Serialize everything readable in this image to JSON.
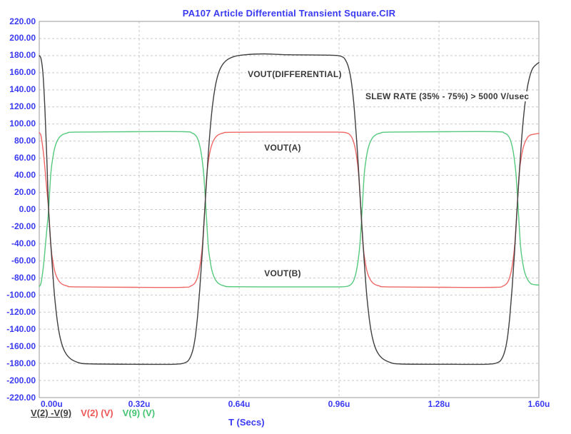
{
  "title": "PA107 Article Differential Transient Square.CIR",
  "colors": {
    "text_blue": "#3a3af2",
    "trace_black": "#3f3f3f",
    "trace_red": "#ef6666",
    "trace_green": "#55c97e",
    "grid": "#c9c9c9",
    "border": "#9a9a9a",
    "annotation": "#383838",
    "background": "#ffffff"
  },
  "chart_data": {
    "type": "line",
    "title": "PA107 Article Differential Transient Square.CIR",
    "xlabel": "T (Secs)",
    "ylabel": "",
    "xlim": [
      0,
      1.6
    ],
    "ylim": [
      -220,
      220
    ],
    "x_unit": "u",
    "grid": "dashed",
    "x_ticks": [
      "0.00u",
      "0.32u",
      "0.64u",
      "0.96u",
      "1.28u",
      "1.60u"
    ],
    "y_ticks": [
      "220.00",
      "200.00",
      "180.00",
      "160.00",
      "140.00",
      "120.00",
      "100.00",
      "80.00",
      "60.00",
      "40.00",
      "20.00",
      "0.00",
      "-20.00",
      "-40.00",
      "-60.00",
      "-80.00",
      "-100.00",
      "-120.00",
      "-140.00",
      "-160.00",
      "-180.00",
      "-200.00",
      "-220.00"
    ],
    "legend": [
      {
        "label": "V(2) -V(9)",
        "color": "#3f3f3f",
        "underline": true
      },
      {
        "label": "V(2) (V)",
        "color": "#ee5555",
        "underline": false
      },
      {
        "label": "V(9) (V)",
        "color": "#44c474",
        "underline": false
      }
    ],
    "annotations": [
      {
        "text": "VOUT(DIFFERENTIAL)",
        "x": 0.663,
        "y": 158
      },
      {
        "text": "VOUT(A)",
        "x": 0.716,
        "y": 72
      },
      {
        "text": "VOUT(B)",
        "x": 0.716,
        "y": -75
      },
      {
        "text": "SLEW RATE (35% - 75%) > 5000 V/usec",
        "x": 1.04,
        "y": 132
      }
    ],
    "series": [
      {
        "name": "V(9) (V)",
        "label": "VOUT(B)",
        "color": "#55c97e",
        "width": 1.4,
        "points": [
          [
            0.0,
            -90
          ],
          [
            0.005,
            -87
          ],
          [
            0.01,
            -76
          ],
          [
            0.016,
            -57
          ],
          [
            0.023,
            -28
          ],
          [
            0.03,
            0
          ],
          [
            0.037,
            42
          ],
          [
            0.044,
            62
          ],
          [
            0.051,
            74
          ],
          [
            0.06,
            82
          ],
          [
            0.072,
            87
          ],
          [
            0.09,
            89.5
          ],
          [
            0.115,
            90.5
          ],
          [
            0.3,
            91
          ],
          [
            0.464,
            91
          ],
          [
            0.489,
            89.5
          ],
          [
            0.5,
            87
          ],
          [
            0.508,
            82
          ],
          [
            0.515,
            73
          ],
          [
            0.521,
            60
          ],
          [
            0.527,
            40
          ],
          [
            0.534,
            0
          ],
          [
            0.541,
            -42
          ],
          [
            0.548,
            -62
          ],
          [
            0.555,
            -74
          ],
          [
            0.564,
            -82
          ],
          [
            0.576,
            -87
          ],
          [
            0.594,
            -89.5
          ],
          [
            0.619,
            -90.3
          ],
          [
            0.8,
            -90.5
          ],
          [
            0.959,
            -90.5
          ],
          [
            0.989,
            -89.5
          ],
          [
            1.0,
            -87
          ],
          [
            1.008,
            -82
          ],
          [
            1.015,
            -73
          ],
          [
            1.021,
            -60
          ],
          [
            1.027,
            -40
          ],
          [
            1.034,
            0
          ],
          [
            1.041,
            42
          ],
          [
            1.048,
            62
          ],
          [
            1.055,
            74
          ],
          [
            1.064,
            82
          ],
          [
            1.076,
            87
          ],
          [
            1.094,
            89.5
          ],
          [
            1.119,
            90.5
          ],
          [
            1.3,
            91
          ],
          [
            1.464,
            91
          ],
          [
            1.489,
            89.5
          ],
          [
            1.5,
            87
          ],
          [
            1.508,
            82
          ],
          [
            1.515,
            73
          ],
          [
            1.521,
            60
          ],
          [
            1.527,
            40
          ],
          [
            1.534,
            0
          ],
          [
            1.541,
            -42
          ],
          [
            1.548,
            -62
          ],
          [
            1.555,
            -74
          ],
          [
            1.564,
            -82
          ],
          [
            1.576,
            -87
          ],
          [
            1.6,
            -88.5
          ]
        ]
      },
      {
        "name": "V(2) (V)",
        "label": "VOUT(A)",
        "color": "#ef6666",
        "width": 1.4,
        "points": [
          [
            0.0,
            90
          ],
          [
            0.005,
            87
          ],
          [
            0.01,
            76
          ],
          [
            0.016,
            57
          ],
          [
            0.023,
            28
          ],
          [
            0.03,
            0
          ],
          [
            0.037,
            -42
          ],
          [
            0.044,
            -62
          ],
          [
            0.051,
            -74
          ],
          [
            0.06,
            -82
          ],
          [
            0.072,
            -87
          ],
          [
            0.09,
            -89.5
          ],
          [
            0.115,
            -90.5
          ],
          [
            0.3,
            -91
          ],
          [
            0.46,
            -91
          ],
          [
            0.485,
            -89.5
          ],
          [
            0.496,
            -87
          ],
          [
            0.504,
            -82
          ],
          [
            0.511,
            -73
          ],
          [
            0.517,
            -60
          ],
          [
            0.523,
            -40
          ],
          [
            0.53,
            0
          ],
          [
            0.537,
            42
          ],
          [
            0.544,
            62
          ],
          [
            0.551,
            74
          ],
          [
            0.56,
            82
          ],
          [
            0.572,
            87
          ],
          [
            0.59,
            89.5
          ],
          [
            0.615,
            90.3
          ],
          [
            0.8,
            90.5
          ],
          [
            0.955,
            90.5
          ],
          [
            0.985,
            89.5
          ],
          [
            0.996,
            87
          ],
          [
            1.004,
            82
          ],
          [
            1.011,
            73
          ],
          [
            1.017,
            60
          ],
          [
            1.023,
            40
          ],
          [
            1.03,
            0
          ],
          [
            1.037,
            -42
          ],
          [
            1.044,
            -62
          ],
          [
            1.051,
            -74
          ],
          [
            1.06,
            -82
          ],
          [
            1.072,
            -87
          ],
          [
            1.09,
            -89.5
          ],
          [
            1.115,
            -90.5
          ],
          [
            1.3,
            -91
          ],
          [
            1.46,
            -91
          ],
          [
            1.485,
            -89.5
          ],
          [
            1.496,
            -87
          ],
          [
            1.504,
            -82
          ],
          [
            1.511,
            -73
          ],
          [
            1.517,
            -60
          ],
          [
            1.523,
            -40
          ],
          [
            1.53,
            0
          ],
          [
            1.537,
            42
          ],
          [
            1.544,
            62
          ],
          [
            1.551,
            74
          ],
          [
            1.56,
            82
          ],
          [
            1.572,
            87
          ],
          [
            1.6,
            89
          ]
        ]
      },
      {
        "name": "V(2) -V(9)",
        "label": "VOUT(DIFFERENTIAL)",
        "color": "#3f3f3f",
        "width": 1.4,
        "points": [
          [
            0.0,
            180
          ],
          [
            0.006,
            176
          ],
          [
            0.012,
            158
          ],
          [
            0.018,
            118
          ],
          [
            0.024,
            62
          ],
          [
            0.03,
            0
          ],
          [
            0.039,
            -52
          ],
          [
            0.048,
            -97
          ],
          [
            0.057,
            -128
          ],
          [
            0.067,
            -150
          ],
          [
            0.08,
            -165
          ],
          [
            0.098,
            -174
          ],
          [
            0.125,
            -179
          ],
          [
            0.16,
            -180.5
          ],
          [
            0.3,
            -181
          ],
          [
            0.43,
            -181
          ],
          [
            0.468,
            -179
          ],
          [
            0.482,
            -174
          ],
          [
            0.492,
            -164
          ],
          [
            0.5,
            -148
          ],
          [
            0.507,
            -125
          ],
          [
            0.514,
            -93
          ],
          [
            0.522,
            -50
          ],
          [
            0.53,
            0
          ],
          [
            0.539,
            52
          ],
          [
            0.548,
            97
          ],
          [
            0.557,
            128
          ],
          [
            0.567,
            150
          ],
          [
            0.58,
            165
          ],
          [
            0.598,
            174
          ],
          [
            0.625,
            179
          ],
          [
            0.66,
            181
          ],
          [
            0.72,
            182
          ],
          [
            0.8,
            181
          ],
          [
            0.93,
            180.5
          ],
          [
            0.968,
            179
          ],
          [
            0.982,
            174
          ],
          [
            0.992,
            164
          ],
          [
            1.0,
            148
          ],
          [
            1.007,
            125
          ],
          [
            1.014,
            93
          ],
          [
            1.022,
            50
          ],
          [
            1.03,
            0
          ],
          [
            1.039,
            -52
          ],
          [
            1.048,
            -97
          ],
          [
            1.057,
            -128
          ],
          [
            1.067,
            -150
          ],
          [
            1.08,
            -165
          ],
          [
            1.098,
            -174
          ],
          [
            1.125,
            -179
          ],
          [
            1.16,
            -180.8
          ],
          [
            1.3,
            -181
          ],
          [
            1.43,
            -181
          ],
          [
            1.468,
            -179
          ],
          [
            1.482,
            -174
          ],
          [
            1.492,
            -164
          ],
          [
            1.5,
            -148
          ],
          [
            1.507,
            -125
          ],
          [
            1.514,
            -93
          ],
          [
            1.522,
            -50
          ],
          [
            1.53,
            0
          ],
          [
            1.539,
            52
          ],
          [
            1.548,
            97
          ],
          [
            1.557,
            128
          ],
          [
            1.567,
            150
          ],
          [
            1.58,
            165
          ],
          [
            1.6,
            172
          ]
        ]
      }
    ]
  }
}
